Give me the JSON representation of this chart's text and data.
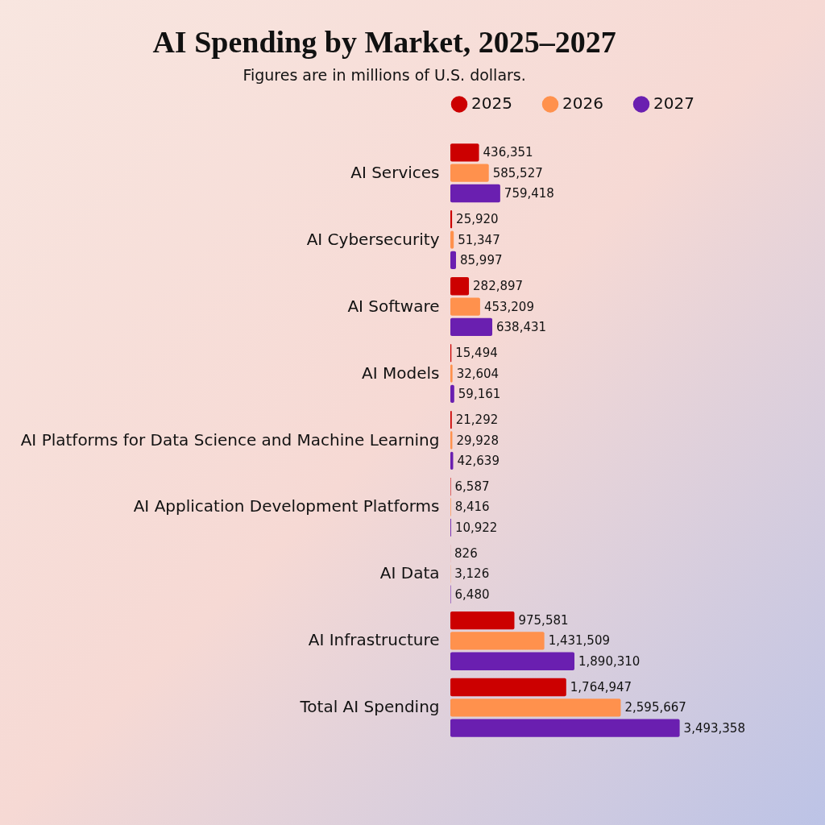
{
  "chart_data": {
    "type": "bar",
    "orientation": "horizontal",
    "title": "AI Spending by Market, 2025–2027",
    "subtitle": "Figures are in millions of U.S. dollars.",
    "categories": [
      "AI Services",
      "AI Cybersecurity",
      "AI Software",
      "AI Models",
      "AI Platforms for Data Science and Machine Learning",
      "AI Application Development Platforms",
      "AI Data",
      "AI Infrastructure",
      "Total AI Spending"
    ],
    "series": [
      {
        "name": "2025",
        "color": "#cc0000",
        "values": [
          436351,
          25920,
          282897,
          15494,
          21292,
          6587,
          826,
          975581,
          1764947
        ],
        "value_labels": [
          "436,351",
          "25,920",
          "282,897",
          "15,494",
          "21,292",
          "6,587",
          "826",
          "975,581",
          "1,764,947"
        ]
      },
      {
        "name": "2026",
        "color": "#ff914d",
        "values": [
          585527,
          51347,
          453209,
          32604,
          29928,
          8416,
          3126,
          1431509,
          2595667
        ],
        "value_labels": [
          "585,527",
          "51,347",
          "453,209",
          "32,604",
          "29,928",
          "8,416",
          "3,126",
          "1,431,509",
          "2,595,667"
        ]
      },
      {
        "name": "2027",
        "color": "#6a1fb0",
        "values": [
          759418,
          85997,
          638431,
          59161,
          42639,
          10922,
          6480,
          1890310,
          3493358
        ],
        "value_labels": [
          "759,418",
          "85,997",
          "638,431",
          "59,161",
          "42,639",
          "10,922",
          "6,480",
          "1,890,310",
          "3,493,358"
        ]
      }
    ],
    "legend": "top"
  }
}
